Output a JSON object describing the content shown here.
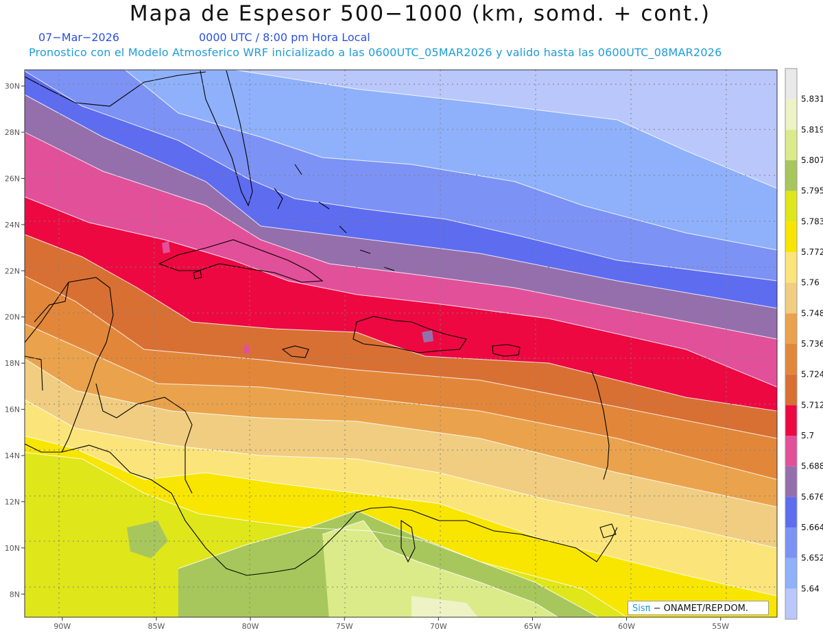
{
  "header": {
    "title": "Mapa de Espesor 500−1000 (km, somd. + cont.)",
    "date": "07−Mar−2026",
    "time": "0000 UTC / 8:00 pm Hora Local",
    "description": "Pronostico con el Modelo Atmosferico WRF inicializado a las 0600UTC_05MAR2026 y valido hasta las  0600UTC_08MAR2026"
  },
  "map": {
    "lon_labels": [
      "90W",
      "85W",
      "80W",
      "75W",
      "70W",
      "65W",
      "60W",
      "55W"
    ],
    "lat_labels": [
      "30N",
      "28N",
      "26N",
      "24N",
      "22N",
      "20N",
      "18N",
      "16N",
      "14N",
      "12N",
      "10N",
      "8N"
    ],
    "lon_range": [
      -92,
      -52
    ],
    "lat_range": [
      7,
      30.7
    ]
  },
  "colorbar": {
    "levels": [
      "5.64",
      "5.652",
      "5.664",
      "5.676",
      "5.688",
      "5.7",
      "5.712",
      "5.724",
      "5.736",
      "5.748",
      "5.76",
      "5.772",
      "5.783",
      "5.795",
      "5.807",
      "5.819",
      "5.831"
    ],
    "colors": [
      "#b9c7fb",
      "#8fb1fb",
      "#7d92f5",
      "#5e6cf0",
      "#956fac",
      "#e2509a",
      "#ed0842",
      "#d87034",
      "#e2873a",
      "#eaa34c",
      "#f0cd80",
      "#fbe47a",
      "#f8e600",
      "#dfe61a",
      "#a7c75c",
      "#dbeb89",
      "#eef3c6",
      "#e9e9e9"
    ]
  },
  "credit": {
    "sis": "Sisπ",
    "org": "− ONAMET/REP.DOM."
  }
}
